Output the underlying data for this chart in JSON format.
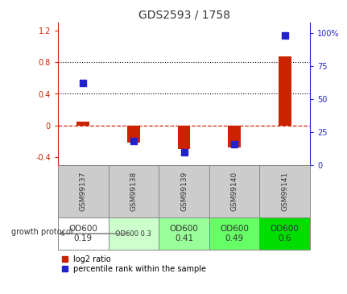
{
  "title": "GDS2593 / 1758",
  "samples": [
    "GSM99137",
    "GSM99138",
    "GSM99139",
    "GSM99140",
    "GSM99141"
  ],
  "log2_ratio": [
    0.05,
    -0.22,
    -0.3,
    -0.28,
    0.87
  ],
  "percentile_rank": [
    62,
    18,
    10,
    16,
    98
  ],
  "ylim_left": [
    -0.5,
    1.3
  ],
  "ylim_right": [
    0,
    108
  ],
  "yticks_left": [
    -0.4,
    0.0,
    0.4,
    0.8,
    1.2
  ],
  "yticks_right": [
    0,
    25,
    50,
    75,
    100
  ],
  "ytick_labels_left": [
    "-0.4",
    "0",
    "0.4",
    "0.8",
    "1.2"
  ],
  "ytick_labels_right": [
    "0",
    "25",
    "50",
    "75",
    "100%"
  ],
  "hlines": [
    0.4,
    0.8
  ],
  "zero_line": 0.0,
  "growth_protocol_labels": [
    "OD600\n0.19",
    "OD600 0.3",
    "OD600\n0.41",
    "OD600\n0.49",
    "OD600\n0.6"
  ],
  "growth_protocol_fontsize": [
    7.5,
    6.0,
    7.5,
    7.5,
    7.5
  ],
  "growth_protocol_colors": [
    "#ffffff",
    "#ccffcc",
    "#99ff99",
    "#66ff66",
    "#00dd00"
  ],
  "bar_color_red": "#cc2200",
  "bar_color_blue": "#2222cc",
  "bar_width": 0.25,
  "blue_marker_size": 6,
  "left_axis_color": "#cc2200",
  "right_axis_color": "#2222cc",
  "grid_color": "#000000",
  "zero_line_color": "#cc2200",
  "bg_plot": "#ffffff",
  "bg_label_area": "#cccccc",
  "label_growth_text": "growth protocol",
  "legend_red": "log2 ratio",
  "legend_blue": "percentile rank within the sample"
}
